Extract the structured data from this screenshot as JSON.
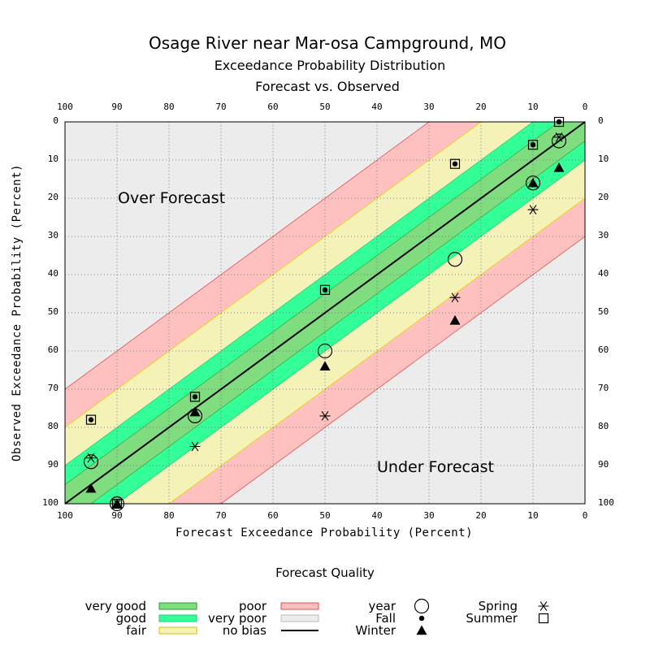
{
  "chart_data": {
    "type": "scatter",
    "title": "Osage River near Mar-osa Campground, MO",
    "subtitle_1": "Exceedance Probability Distribution",
    "subtitle_2": "Forecast vs. Observed",
    "xlabel": "Forecast Exceedance Probability (Percent)",
    "ylabel": "Observed Exceedance Probability (Percent)",
    "xlim": [
      100,
      0
    ],
    "ylim": [
      100,
      0
    ],
    "ticks": [
      100,
      90,
      80,
      70,
      60,
      50,
      40,
      30,
      20,
      10,
      0
    ],
    "grid": true,
    "region_labels": {
      "over": "Over Forecast",
      "under": "Under Forecast"
    },
    "bands": [
      {
        "name": "very good",
        "half_width": 5,
        "color": "#7fdd7f"
      },
      {
        "name": "good",
        "half_width": 10,
        "color": "#33ff99"
      },
      {
        "name": "fair",
        "half_width": 20,
        "color": "#f5f2b8"
      },
      {
        "name": "poor",
        "half_width": 30,
        "color": "#ffc0c0"
      }
    ],
    "series": [
      {
        "name": "year",
        "marker": "circle",
        "points": [
          [
            95,
            89
          ],
          [
            90,
            100
          ],
          [
            75,
            77
          ],
          [
            50,
            60
          ],
          [
            25,
            36
          ],
          [
            10,
            16
          ],
          [
            5,
            5
          ]
        ]
      },
      {
        "name": "Fall",
        "marker": "dot",
        "points": [
          [
            95,
            78
          ],
          [
            90,
            100
          ],
          [
            75,
            72
          ],
          [
            50,
            44
          ],
          [
            25,
            11
          ],
          [
            10,
            6
          ],
          [
            5,
            0
          ]
        ]
      },
      {
        "name": "Winter",
        "marker": "triangle",
        "points": [
          [
            95,
            96
          ],
          [
            90,
            100
          ],
          [
            75,
            76
          ],
          [
            50,
            64
          ],
          [
            25,
            52
          ],
          [
            10,
            16
          ],
          [
            5,
            12
          ]
        ]
      },
      {
        "name": "Spring",
        "marker": "star",
        "points": [
          [
            95,
            88
          ],
          [
            90,
            100
          ],
          [
            75,
            85
          ],
          [
            50,
            77
          ],
          [
            25,
            46
          ],
          [
            10,
            23
          ],
          [
            5,
            4
          ]
        ]
      },
      {
        "name": "Summer",
        "marker": "square",
        "points": [
          [
            95,
            78
          ],
          [
            90,
            100
          ],
          [
            75,
            72
          ],
          [
            50,
            44
          ],
          [
            25,
            11
          ],
          [
            10,
            6
          ],
          [
            5,
            0
          ]
        ]
      }
    ]
  },
  "legend": {
    "title": "Forecast Quality",
    "items": [
      {
        "label": "very good",
        "kind": "swatch",
        "fill": "#7fdd7f",
        "stroke": "#2e9a2e"
      },
      {
        "label": "good",
        "kind": "swatch",
        "fill": "#33ff99",
        "stroke": "#22cc77"
      },
      {
        "label": "fair",
        "kind": "swatch",
        "fill": "#f5f2b8",
        "stroke": "#d8c000"
      },
      {
        "label": "poor",
        "kind": "swatch",
        "fill": "#ffc0c0",
        "stroke": "#e05050"
      },
      {
        "label": "very poor",
        "kind": "swatch",
        "fill": "#ececec",
        "stroke": "#bbbbbb"
      },
      {
        "label": "no bias",
        "kind": "line",
        "fill": "#000000",
        "stroke": "#000000"
      },
      {
        "label": "year",
        "kind": "marker",
        "marker": "circle"
      },
      {
        "label": "Fall",
        "kind": "marker",
        "marker": "dot"
      },
      {
        "label": "Winter",
        "kind": "marker",
        "marker": "triangle"
      },
      {
        "label": "Spring",
        "kind": "marker",
        "marker": "star"
      },
      {
        "label": "Summer",
        "kind": "marker",
        "marker": "square"
      }
    ]
  },
  "colors": {
    "background_region": "#ececec",
    "band_edge": "#e05050",
    "no_bias_line": "#000000"
  }
}
